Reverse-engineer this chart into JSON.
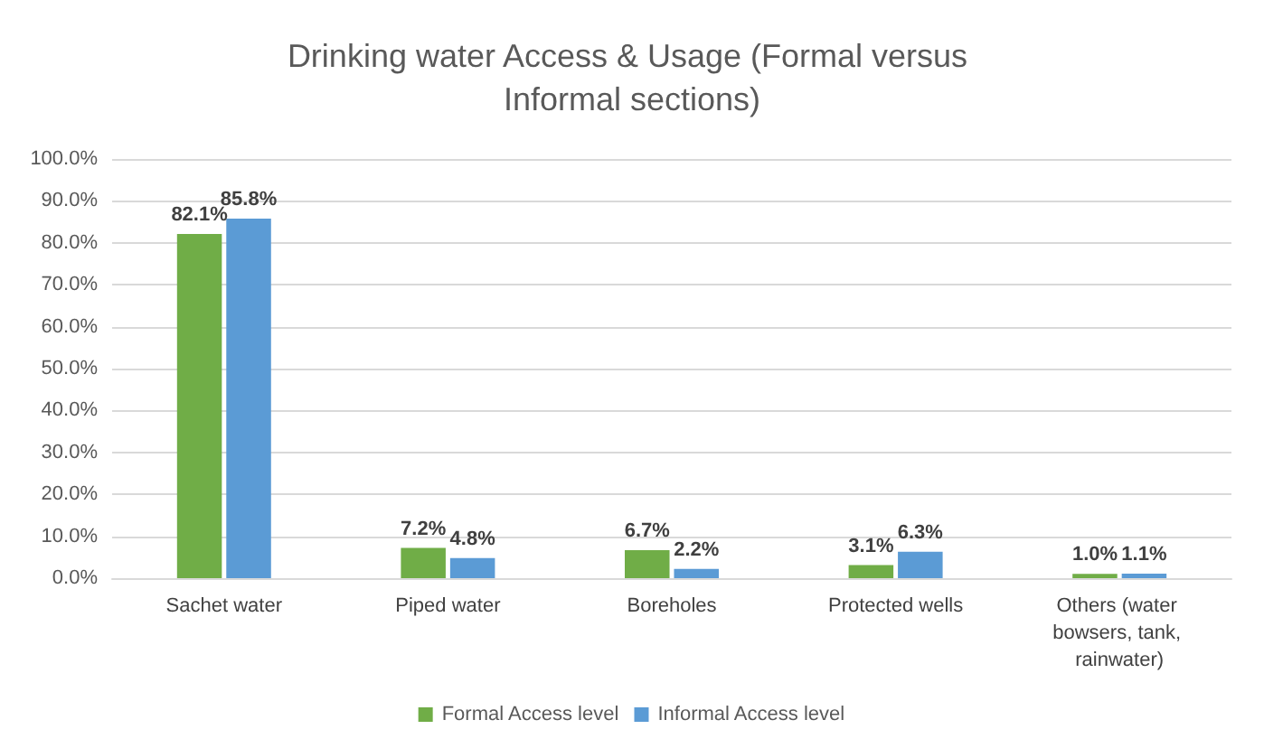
{
  "chart_data": {
    "type": "bar",
    "title": "Drinking water Access & Usage (Formal versus Informal sections)",
    "categories": [
      "Sachet water",
      "Piped water",
      "Boreholes",
      "Protected wells",
      "Others (water bowsers, tank, rainwater)"
    ],
    "series": [
      {
        "name": "Formal Access level",
        "color": "#70ad47",
        "values": [
          82.1,
          7.2,
          6.7,
          3.1,
          1.0
        ],
        "value_labels": [
          "82.1%",
          "7.2%",
          "6.7%",
          "3.1%",
          "1.0%"
        ]
      },
      {
        "name": "Informal Access level",
        "color": "#5b9bd5",
        "values": [
          85.8,
          4.8,
          2.2,
          6.3,
          1.1
        ],
        "value_labels": [
          "85.8%",
          "4.8%",
          "2.2%",
          "6.3%",
          "1.1%"
        ]
      }
    ],
    "ylim": [
      0,
      100
    ],
    "yticks": [
      {
        "value": 0,
        "label": "0.0%"
      },
      {
        "value": 10,
        "label": "10.0%"
      },
      {
        "value": 20,
        "label": "20.0%"
      },
      {
        "value": 30,
        "label": "30.0%"
      },
      {
        "value": 40,
        "label": "40.0%"
      },
      {
        "value": 50,
        "label": "50.0%"
      },
      {
        "value": 60,
        "label": "60.0%"
      },
      {
        "value": 70,
        "label": "70.0%"
      },
      {
        "value": 80,
        "label": "80.0%"
      },
      {
        "value": 90,
        "label": "90.0%"
      },
      {
        "value": 100,
        "label": "100.0%"
      }
    ],
    "grid": "y",
    "legend": "bottom"
  }
}
